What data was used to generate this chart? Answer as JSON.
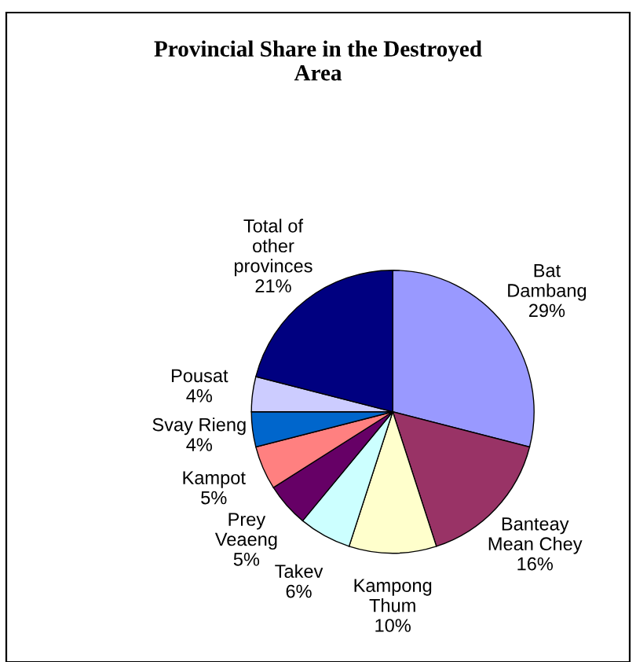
{
  "chart_data": {
    "type": "pie",
    "title": "Provincial Share in the Destroyed\nArea",
    "categories": [
      "Bat\nDambang",
      "Banteay\nMean Chey",
      "Kampong\nThum",
      "Takev",
      "Prey\nVeaeng",
      "Kampot",
      "Svay Rieng",
      "Pousat",
      "Total of\nother\nprovinces"
    ],
    "values": [
      29,
      16,
      10,
      6,
      5,
      5,
      4,
      4,
      21
    ],
    "colors": [
      "#9999ff",
      "#993366",
      "#ffffcc",
      "#ccffff",
      "#660066",
      "#ff8080",
      "#0066cc",
      "#ccccff",
      "#000080"
    ],
    "value_labels": [
      "29%",
      "16%",
      "10%",
      "6%",
      "5%",
      "5%",
      "4%",
      "4%",
      "21%"
    ],
    "legend": false
  }
}
